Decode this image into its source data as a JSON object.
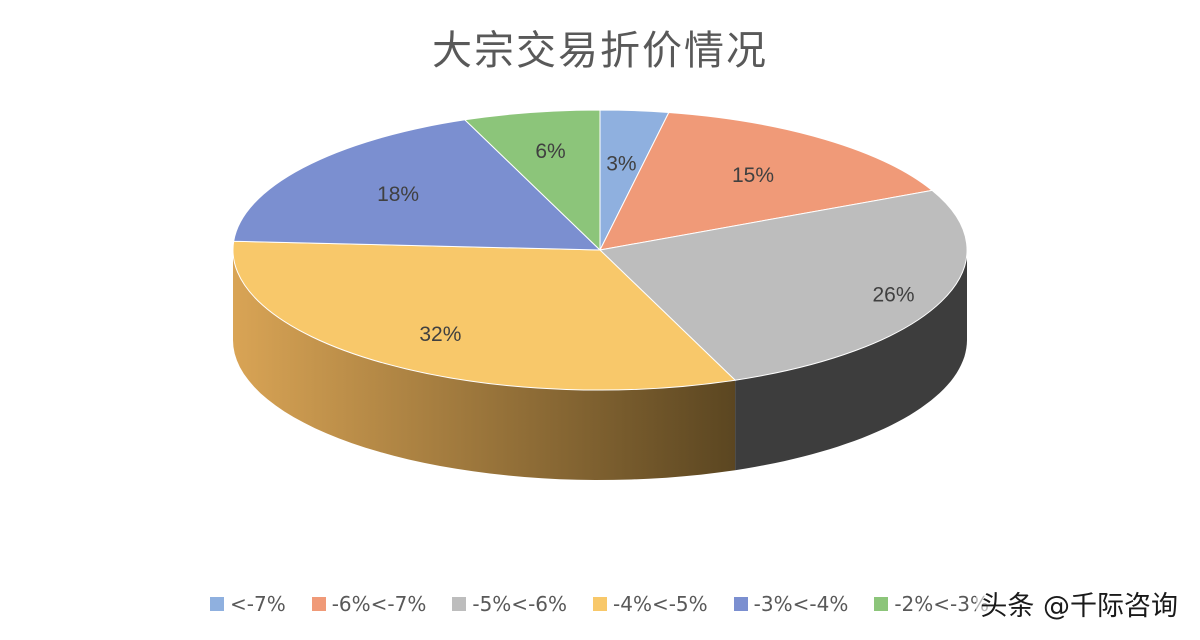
{
  "chart_data": {
    "type": "pie",
    "title": "大宗交易折价情况",
    "categories": [
      "<-7%",
      "-6%<-7%",
      "-5%<-6%",
      "-4%<-5%",
      "-3%<-4%",
      "-2%<-3%"
    ],
    "values": [
      3,
      15,
      26,
      32,
      18,
      6
    ],
    "data_labels": [
      "3%",
      "15%",
      "26%",
      "32%",
      "18%",
      "6%"
    ],
    "colors": [
      "#8fb0df",
      "#f09a78",
      "#bdbdbd",
      "#f8c86a",
      "#7b8fd0",
      "#8cc57a"
    ],
    "side_colors": [
      "#4d6a94",
      "#9a5d43",
      "#3d3d3d",
      "#a9803b",
      "#3f4d86",
      "#4f7d42"
    ],
    "legend_position": "bottom",
    "three_d": true
  },
  "watermark": "头条 @千际咨询"
}
